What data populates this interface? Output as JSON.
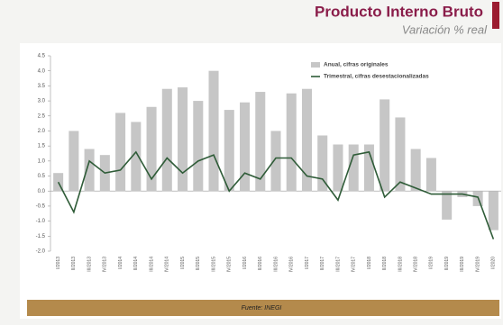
{
  "chart_data": {
    "type": "bar_line",
    "title": "Producto Interno Bruto",
    "subtitle": "Variación % real",
    "source": "Fuente: INEGI",
    "categories": [
      "I/2013",
      "II/2013",
      "III/2013",
      "IV/2013",
      "I/2014",
      "II/2014",
      "III/2014",
      "IV/2014",
      "I/2015",
      "II/2015",
      "III/2015",
      "IV/2015",
      "I/2016",
      "II/2016",
      "III/2016",
      "IV/2016",
      "I/2017",
      "II/2017",
      "III/2017",
      "IV/2017",
      "I/2018",
      "II/2018",
      "III/2018",
      "IV/2018",
      "I/2019",
      "II/2019",
      "III/2019",
      "IV/2019",
      "I/2020"
    ],
    "series": [
      {
        "name": "Anual, cifras originales",
        "color": "#c6c6c6",
        "kind": "bar",
        "values": [
          0.6,
          2.0,
          1.4,
          1.2,
          2.6,
          2.3,
          2.8,
          3.4,
          3.45,
          3.0,
          4.0,
          2.7,
          2.95,
          3.3,
          2.0,
          3.25,
          3.4,
          1.85,
          1.55,
          1.55,
          1.55,
          3.05,
          2.45,
          1.4,
          1.1,
          -0.95,
          -0.2,
          -0.5,
          -1.3
        ]
      },
      {
        "name": "Trimestral, cifras desestacionalizadas",
        "color": "#2f5c38",
        "kind": "line",
        "values": [
          0.3,
          -0.7,
          1.0,
          0.6,
          0.7,
          1.3,
          0.4,
          1.1,
          0.6,
          1.0,
          1.2,
          0.0,
          0.6,
          0.4,
          1.1,
          1.1,
          0.5,
          0.4,
          -0.3,
          1.2,
          1.3,
          -0.2,
          0.3,
          0.1,
          -0.1,
          -0.1,
          -0.1,
          -0.2,
          -1.6
        ]
      }
    ],
    "ylim": [
      -2.0,
      4.5
    ],
    "yticks": [
      {
        "value": 4.5,
        "label": "4.5"
      },
      {
        "value": 4.0,
        "label": "4.0"
      },
      {
        "value": 3.5,
        "label": "3.5"
      },
      {
        "value": 3.0,
        "label": "3.0"
      },
      {
        "value": 2.5,
        "label": "2.5"
      },
      {
        "value": 2.0,
        "label": "2.0"
      },
      {
        "value": 1.5,
        "label": "1.5"
      },
      {
        "value": 1.0,
        "label": "1.0"
      },
      {
        "value": 0.5,
        "label": "0.5"
      },
      {
        "value": 0.0,
        "label": "0.0"
      },
      {
        "value": -0.5,
        "label": "-0.5"
      },
      {
        "value": -1.0,
        "label": "-1.0"
      },
      {
        "value": -1.5,
        "label": "-1.5"
      },
      {
        "value": -2.0,
        "label": "-2.0"
      }
    ],
    "legend": "top-right"
  }
}
